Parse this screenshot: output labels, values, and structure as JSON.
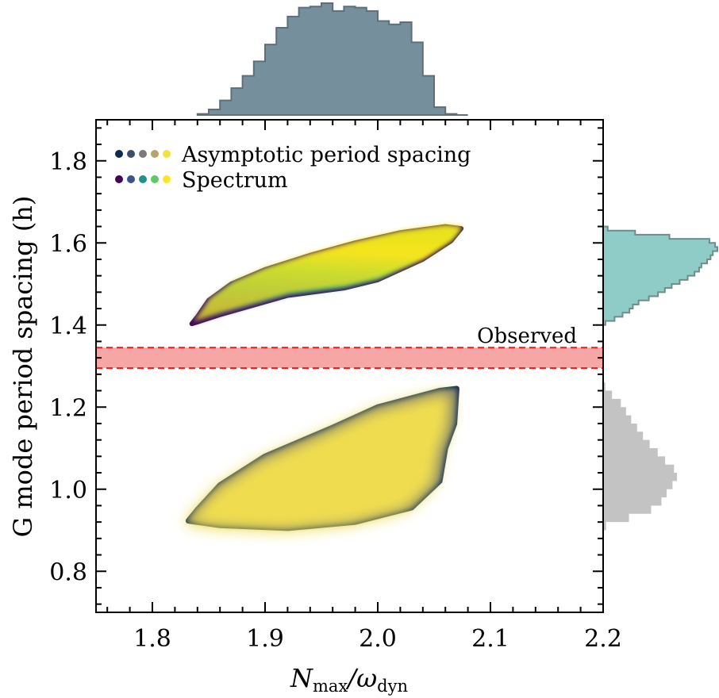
{
  "chart_data": {
    "type": "scatter",
    "title": "",
    "xlabel": "N",
    "xlabel_sub": "max",
    "xlabel_sep": "/ω",
    "xlabel_sub2": "dyn",
    "ylabel": "G mode period spacing (h)",
    "xlim": [
      1.75,
      2.2
    ],
    "ylim": [
      0.7,
      1.9
    ],
    "xticks": [
      "1.8",
      "1.9",
      "2.0",
      "2.1",
      "2.2"
    ],
    "yticks": [
      "0.8",
      "1.0",
      "1.2",
      "1.4",
      "1.6",
      "1.8"
    ],
    "grid": false,
    "legend_position": "top-left",
    "legend": [
      {
        "label": "Asymptotic period spacing",
        "colors": [
          "#0b2a4f",
          "#3d4e6c",
          "#7c7b78",
          "#b6a46a",
          "#f3e33a"
        ]
      },
      {
        "label": "Spectrum",
        "colors": [
          "#440154",
          "#3b528b",
          "#21918c",
          "#5ec962",
          "#fde725"
        ]
      }
    ],
    "observed_band": {
      "label": "Observed",
      "y_low": 1.295,
      "y_high": 1.345,
      "color": "#f7a6a6",
      "edge_color": "#e02020"
    },
    "series": [
      {
        "name": "Spectrum",
        "region_outline": [
          [
            1.835,
            1.403
          ],
          [
            1.86,
            1.425
          ],
          [
            1.92,
            1.472
          ],
          [
            1.97,
            1.49
          ],
          [
            2.0,
            1.51
          ],
          [
            2.04,
            1.56
          ],
          [
            2.065,
            1.605
          ],
          [
            2.074,
            1.635
          ],
          [
            2.06,
            1.64
          ],
          [
            2.02,
            1.625
          ],
          [
            1.98,
            1.6
          ],
          [
            1.94,
            1.57
          ],
          [
            1.9,
            1.535
          ],
          [
            1.87,
            1.5
          ],
          [
            1.85,
            1.46
          ],
          [
            1.84,
            1.42
          ]
        ],
        "colormap": "viridis"
      },
      {
        "name": "Asymptotic period spacing",
        "region_outline": [
          [
            1.832,
            0.923
          ],
          [
            1.86,
            0.912
          ],
          [
            1.92,
            0.905
          ],
          [
            1.98,
            0.92
          ],
          [
            2.03,
            0.955
          ],
          [
            2.055,
            1.02
          ],
          [
            2.06,
            1.1
          ],
          [
            2.068,
            1.16
          ],
          [
            2.07,
            1.245
          ],
          [
            2.055,
            1.24
          ],
          [
            2.0,
            1.2
          ],
          [
            1.96,
            1.15
          ],
          [
            1.9,
            1.08
          ],
          [
            1.86,
            1.01
          ],
          [
            1.84,
            0.95
          ]
        ],
        "colormap": "cividis"
      }
    ],
    "marginal_x": {
      "bin_edges": [
        1.84,
        1.85,
        1.86,
        1.87,
        1.88,
        1.89,
        1.9,
        1.91,
        1.92,
        1.93,
        1.94,
        1.95,
        1.96,
        1.97,
        1.98,
        1.99,
        2.0,
        2.01,
        2.02,
        2.03,
        2.04,
        2.05,
        2.06,
        2.07,
        2.08
      ],
      "counts": [
        0.01,
        0.05,
        0.13,
        0.24,
        0.35,
        0.48,
        0.63,
        0.78,
        0.88,
        0.96,
        0.97,
        1.0,
        0.93,
        0.97,
        0.96,
        0.93,
        0.84,
        0.81,
        0.83,
        0.65,
        0.35,
        0.07,
        0.01,
        0.0
      ],
      "color": "#75909c"
    },
    "marginal_y_spectrum": {
      "bin_edges": [
        1.4,
        1.41,
        1.42,
        1.43,
        1.44,
        1.45,
        1.46,
        1.47,
        1.48,
        1.49,
        1.5,
        1.51,
        1.52,
        1.53,
        1.54,
        1.55,
        1.56,
        1.57,
        1.58,
        1.59,
        1.6,
        1.61,
        1.62,
        1.63,
        1.64
      ],
      "counts": [
        0.02,
        0.1,
        0.17,
        0.23,
        0.26,
        0.31,
        0.4,
        0.48,
        0.54,
        0.6,
        0.67,
        0.74,
        0.8,
        0.84,
        0.86,
        0.91,
        0.94,
        0.96,
        1.0,
        0.98,
        0.93,
        0.58,
        0.28,
        0.04
      ],
      "color": "#8fcbc7"
    },
    "marginal_y_asymptotic": {
      "bin_edges": [
        0.9,
        0.92,
        0.94,
        0.96,
        0.98,
        1.0,
        1.02,
        1.04,
        1.06,
        1.08,
        1.1,
        1.12,
        1.14,
        1.16,
        1.18,
        1.2,
        1.22,
        1.24,
        1.26
      ],
      "counts": [
        0.04,
        0.35,
        0.65,
        0.79,
        0.86,
        0.94,
        1.0,
        0.96,
        0.84,
        0.74,
        0.63,
        0.54,
        0.46,
        0.38,
        0.31,
        0.24,
        0.12,
        0.03
      ],
      "color": "#c3c3c3"
    }
  }
}
